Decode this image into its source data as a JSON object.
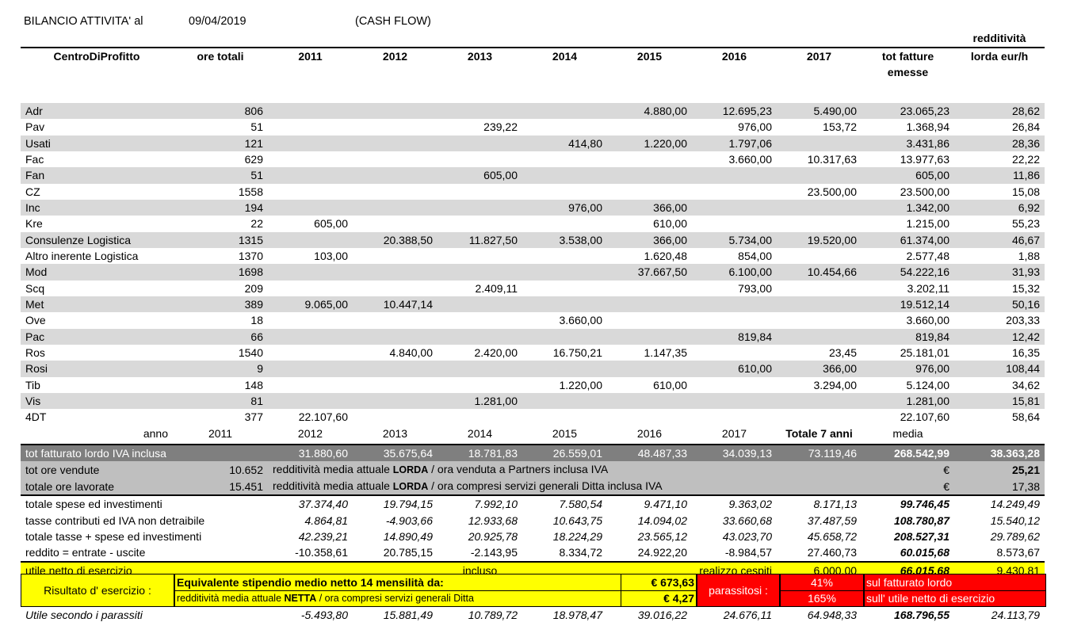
{
  "header": {
    "title": "BILANCIO ATTIVITA' al",
    "date": "09/04/2019",
    "subtitle": "(CASH FLOW)"
  },
  "columns": {
    "centro": "CentroDiProfitto",
    "ore": "ore totali",
    "years": [
      "2011",
      "2012",
      "2013",
      "2014",
      "2015",
      "2016",
      "2017"
    ],
    "tot_line1": "tot fatture",
    "tot_line2": "emesse",
    "red_top": "redditività",
    "red_line1": "lorda eur/h"
  },
  "rows": [
    {
      "name": "Adr",
      "ore": "806",
      "y": [
        "",
        "",
        "",
        "",
        "4.880,00",
        "12.695,23",
        "5.490,00"
      ],
      "tot": "23.065,23",
      "red": "28,62"
    },
    {
      "name": "Pav",
      "ore": "51",
      "y": [
        "",
        "",
        "239,22",
        "",
        "",
        "976,00",
        "153,72"
      ],
      "tot": "1.368,94",
      "red": "26,84"
    },
    {
      "name": "Usati",
      "ore": "121",
      "y": [
        "",
        "",
        "",
        "414,80",
        "1.220,00",
        "1.797,06",
        ""
      ],
      "tot": "3.431,86",
      "red": "28,36"
    },
    {
      "name": "Fac",
      "ore": "629",
      "y": [
        "",
        "",
        "",
        "",
        "",
        "3.660,00",
        "10.317,63"
      ],
      "tot": "13.977,63",
      "red": "22,22"
    },
    {
      "name": "Fan",
      "ore": "51",
      "y": [
        "",
        "",
        "605,00",
        "",
        "",
        "",
        ""
      ],
      "tot": "605,00",
      "red": "11,86"
    },
    {
      "name": "CZ",
      "ore": "1558",
      "y": [
        "",
        "",
        "",
        "",
        "",
        "",
        "23.500,00"
      ],
      "tot": "23.500,00",
      "red": "15,08"
    },
    {
      "name": "Inc",
      "ore": "194",
      "y": [
        "",
        "",
        "",
        "976,00",
        "366,00",
        "",
        ""
      ],
      "tot": "1.342,00",
      "red": "6,92"
    },
    {
      "name": "Kre",
      "ore": "22",
      "y": [
        "605,00",
        "",
        "",
        "",
        "610,00",
        "",
        ""
      ],
      "tot": "1.215,00",
      "red": "55,23"
    },
    {
      "name": "Consulenze Logistica",
      "ore": "1315",
      "y": [
        "",
        "20.388,50",
        "11.827,50",
        "3.538,00",
        "366,00",
        "5.734,00",
        "19.520,00"
      ],
      "tot": "61.374,00",
      "red": "46,67"
    },
    {
      "name": "Altro inerente Logistica",
      "ore": "1370",
      "y": [
        "103,00",
        "",
        "",
        "",
        "1.620,48",
        "854,00",
        ""
      ],
      "tot": "2.577,48",
      "red": "1,88"
    },
    {
      "name": "Mod",
      "ore": "1698",
      "y": [
        "",
        "",
        "",
        "",
        "37.667,50",
        "6.100,00",
        "10.454,66"
      ],
      "tot": "54.222,16",
      "red": "31,93"
    },
    {
      "name": "Scq",
      "ore": "209",
      "y": [
        "",
        "",
        "2.409,11",
        "",
        "",
        "793,00",
        ""
      ],
      "tot": "3.202,11",
      "red": "15,32"
    },
    {
      "name": "Met",
      "ore": "389",
      "y": [
        "9.065,00",
        "10.447,14",
        "",
        "",
        "",
        "",
        ""
      ],
      "tot": "19.512,14",
      "red": "50,16"
    },
    {
      "name": "Ove",
      "ore": "18",
      "y": [
        "",
        "",
        "",
        "3.660,00",
        "",
        "",
        ""
      ],
      "tot": "3.660,00",
      "red": "203,33"
    },
    {
      "name": "Pac",
      "ore": "66",
      "y": [
        "",
        "",
        "",
        "",
        "",
        "819,84",
        ""
      ],
      "tot": "819,84",
      "red": "12,42"
    },
    {
      "name": "Ros",
      "ore": "1540",
      "y": [
        "",
        "4.840,00",
        "2.420,00",
        "16.750,21",
        "1.147,35",
        "",
        "23,45"
      ],
      "tot": "25.181,01",
      "red": "16,35"
    },
    {
      "name": "Rosi",
      "ore": "9",
      "y": [
        "",
        "",
        "",
        "",
        "",
        "610,00",
        "366,00"
      ],
      "tot": "976,00",
      "red": "108,44"
    },
    {
      "name": "Tib",
      "ore": "148",
      "y": [
        "",
        "",
        "",
        "1.220,00",
        "610,00",
        "",
        "3.294,00"
      ],
      "tot": "5.124,00",
      "red": "34,62"
    },
    {
      "name": "Vis",
      "ore": "81",
      "y": [
        "",
        "",
        "1.281,00",
        "",
        "",
        "",
        ""
      ],
      "tot": "1.281,00",
      "red": "15,81"
    },
    {
      "name": "4DT",
      "ore": "377",
      "y": [
        "22.107,60",
        "",
        "",
        "",
        "",
        "",
        ""
      ],
      "tot": "22.107,60",
      "red": "58,64"
    }
  ],
  "year_row": {
    "label": "anno",
    "years": [
      "2011",
      "2012",
      "2013",
      "2014",
      "2015",
      "2016",
      "2017"
    ],
    "tot": "Totale 7 anni",
    "red": "media"
  },
  "fatturato": {
    "label": "tot fatturato lordo IVA inclusa",
    "y": [
      "31.880,60",
      "35.675,64",
      "18.781,83",
      "26.559,01",
      "48.487,33",
      "34.039,13",
      "73.119,46"
    ],
    "tot": "268.542,99",
    "red": "38.363,28"
  },
  "ore_vendute": {
    "label": "tot ore vendute",
    "value": "10.652",
    "desc_pre": "redditività media attuale ",
    "desc_bold": "LORDA",
    "desc_post": " / ora venduta a Partners inclusa IVA",
    "cur": "€",
    "red": "25,21"
  },
  "ore_lavorate": {
    "label": "totale ore lavorate",
    "value": "15.451",
    "desc_pre": "redditività media attuale ",
    "desc_bold": "LORDA",
    "desc_post": " / ora compresi servizi generali Ditta inclusa IVA",
    "cur": "€",
    "red": "17,38"
  },
  "spese": {
    "label": "totale spese ed investimenti",
    "y": [
      "37.374,40",
      "19.794,15",
      "7.992,10",
      "7.580,54",
      "9.471,10",
      "9.363,02",
      "8.171,13"
    ],
    "tot": "99.746,45",
    "red": "14.249,49"
  },
  "tasse": {
    "label": "tasse contributi ed IVA non detraibile",
    "y": [
      "4.864,81",
      "-4.903,66",
      "12.933,68",
      "10.643,75",
      "14.094,02",
      "33.660,68",
      "37.487,59"
    ],
    "tot": "108.780,87",
    "red": "15.540,12"
  },
  "tasse_spese": {
    "label": "totale tasse + spese ed investimenti",
    "y": [
      "42.239,21",
      "14.890,49",
      "20.925,78",
      "18.224,29",
      "23.565,12",
      "43.023,70",
      "45.658,72"
    ],
    "tot": "208.527,31",
    "red": "29.789,62"
  },
  "reddito": {
    "label": "reddito = entrate - uscite",
    "y": [
      "-10.358,61",
      "20.785,15",
      "-2.143,95",
      "8.334,72",
      "24.922,20",
      "-8.984,57",
      "27.460,73"
    ],
    "tot": "60.015,68",
    "red": "8.573,67"
  },
  "utile": {
    "label": "utile netto di esercizio",
    "incluso": "incluso",
    "cespiti": "realizzo cespiti",
    "cespiti_val": "6.000,00",
    "tot": "66.015,68",
    "red": "9.430,81"
  },
  "risultato": {
    "label": "Risultato d' esercizio :",
    "stip_label": "Equivalente stipendio medio netto 14 mensilità da:",
    "stip_val": "€ 673,63",
    "netta_pre": "redditività media attuale ",
    "netta_bold": "NETTA",
    "netta_post": " / ora compresi servizi generali Ditta",
    "netta_val": "€ 4,27",
    "parassitosi": "parassitosi :",
    "pct1": "41%",
    "pct1_desc": "sul fatturato lordo",
    "pct2": "165%",
    "pct2_desc": "sull' utile netto di esercizio"
  },
  "utile_parassiti": {
    "label": "Utile secondo i parassiti",
    "y": [
      "-5.493,80",
      "15.881,49",
      "10.789,72",
      "18.978,47",
      "39.016,22",
      "24.676,11",
      "64.948,33"
    ],
    "tot": "168.796,55",
    "red": "24.113,79"
  }
}
